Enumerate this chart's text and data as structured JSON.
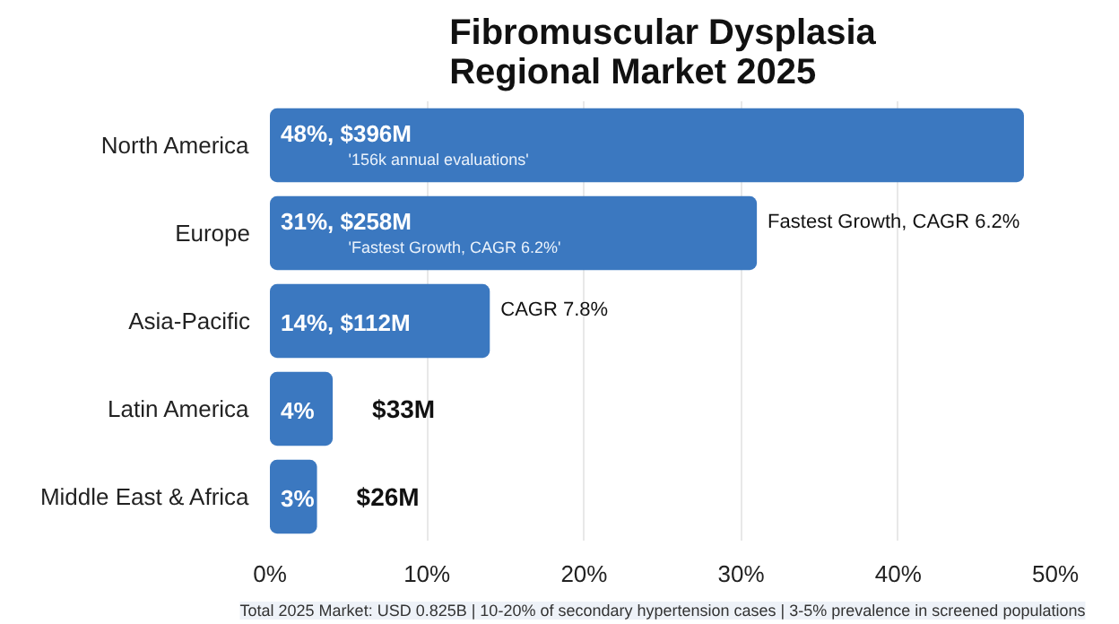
{
  "chart_data": {
    "type": "bar",
    "orientation": "horizontal",
    "title": "Fibromuscular Dysplasia\nRegional Market 2025",
    "categories": [
      "North America",
      "Europe",
      "Asia-Pacific",
      "Latin America",
      "Middle East & Africa"
    ],
    "values": [
      48,
      31,
      14,
      4,
      3
    ],
    "value_labels": [
      "48%, $396M",
      "31%, $258M",
      "14%, $112M",
      "4%",
      "3%"
    ],
    "color": "#3b78c0",
    "xlim": [
      0,
      50
    ],
    "xticks": [
      {
        "value": 0,
        "label": "0%"
      },
      {
        "value": 10,
        "label": "10%"
      },
      {
        "value": 20,
        "label": "20%"
      },
      {
        "value": 30,
        "label": "30%"
      },
      {
        "value": 40,
        "label": "40%"
      },
      {
        "value": 50,
        "label": "50%"
      }
    ],
    "grid": "x",
    "annotations": [
      {
        "text": "'156k annual evaluations'",
        "x": 5,
        "y": "North America"
      },
      {
        "text": "'Fastest Growth, CAGR 6.2%'",
        "x": 5,
        "y": "Europe"
      },
      {
        "text": "Fastest Growth, CAGR 6.2%",
        "x": 31,
        "y": "Europe"
      },
      {
        "text": "CAGR 7.8%",
        "x": 14,
        "y": "Asia-Pacific"
      },
      {
        "text": "$33M",
        "x": 4,
        "y": "Latin America"
      },
      {
        "text": "$26M",
        "x": 3,
        "y": "Middle East & Africa"
      },
      "Total 2025 Market: USD 0.825B | 10-20% of secondary hypertension cases | 3-5% prevalence in screened populations"
    ]
  }
}
